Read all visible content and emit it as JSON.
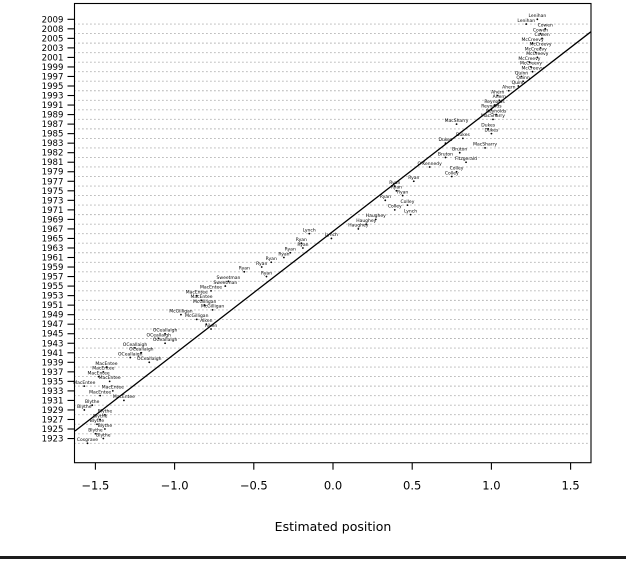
{
  "colors": {
    "foreground": "#000000",
    "grid_dots": "#6e6e6e",
    "background": "#ffffff",
    "window_edge": "#1c1c1c"
  },
  "chart_data": {
    "type": "scatter",
    "title": "",
    "xlabel": "Estimated position",
    "ylabel": "",
    "xlim": [
      -1.63,
      1.63
    ],
    "x_ticks": [
      -1.5,
      -1.0,
      -0.5,
      0.0,
      0.5,
      1.0,
      1.5
    ],
    "x_tick_labels": [
      "−1.5",
      "−1.0",
      "−0.5",
      "0.0",
      "0.5",
      "1.0",
      "1.5"
    ],
    "grid": "dotted horizontal guide lines",
    "legend": "none",
    "y_axis_note": "budget speeches ordered chronologically, 1923 at bottom to 2009 at top; labels thinned",
    "y_tick_labels": [
      "2009",
      "2008",
      "2005",
      "2003",
      "2001",
      "1999",
      "1997",
      "1995",
      "1993",
      "1991",
      "1989",
      "1987",
      "1985",
      "1983",
      "1982",
      "1981",
      "1979",
      "1977",
      "1975",
      "1973",
      "1971",
      "1969",
      "1967",
      "1965",
      "1963",
      "1961",
      "1959",
      "1957",
      "1955",
      "1953",
      "1951",
      "1949",
      "1947",
      "1945",
      "1943",
      "1941",
      "1939",
      "1937",
      "1935",
      "1933",
      "1931",
      "1929",
      "1927",
      "1925",
      "1923"
    ],
    "fit_line": {
      "x_at_top_doc": 1.73,
      "x_at_bottom_doc": -1.73
    },
    "points": [
      {
        "year": 2009,
        "label": "Lenihan",
        "x": 1.29
      },
      {
        "year": 2008,
        "label": "Lenihan",
        "x": 1.22
      },
      {
        "year": 2007,
        "label": "Cowen",
        "x": 1.34
      },
      {
        "year": 2006,
        "label": "Cowen",
        "x": 1.31
      },
      {
        "year": 2005,
        "label": "Cowen",
        "x": 1.32
      },
      {
        "year": 2004,
        "label": "McCreevy",
        "x": 1.26
      },
      {
        "year": 2003,
        "label": "McCreevy",
        "x": 1.31
      },
      {
        "year": 2002,
        "label": "McCreevy",
        "x": 1.28
      },
      {
        "year": 2001,
        "label": "McCreevy",
        "x": 1.29
      },
      {
        "year": 2000,
        "label": "McCreevy",
        "x": 1.24
      },
      {
        "year": 1999,
        "label": "McCreevy",
        "x": 1.25
      },
      {
        "year": 1998,
        "label": "McCreevy",
        "x": 1.26
      },
      {
        "year": 1997,
        "label": "Quinn",
        "x": 1.19
      },
      {
        "year": 1996,
        "label": "Quinn",
        "x": 1.2
      },
      {
        "year": 1995,
        "label": "Quinn",
        "x": 1.17
      },
      {
        "year": 1994,
        "label": "Ahern",
        "x": 1.11
      },
      {
        "year": 1993,
        "label": "Ahern",
        "x": 1.04
      },
      {
        "year": 1992,
        "label": "Ahern",
        "x": 1.05
      },
      {
        "year": 1991,
        "label": "Reynolds",
        "x": 1.02
      },
      {
        "year": 1990,
        "label": "Reynolds",
        "x": 1.0
      },
      {
        "year": 1989,
        "label": "Reynolds",
        "x": 1.03
      },
      {
        "year": 1988,
        "label": "MacSharry",
        "x": 1.01
      },
      {
        "year": 1987,
        "label": "MacSharry",
        "x": 0.78
      },
      {
        "year": 1986,
        "label": "Dukes",
        "x": 0.98
      },
      {
        "year": 1985,
        "label": "Dukes",
        "x": 1.0
      },
      {
        "year": 1984,
        "label": "Dukes",
        "x": 0.82
      },
      {
        "year": 1983,
        "label": "Dukes",
        "x": 0.71
      },
      {
        "year": 1982,
        "label": "MacSharry",
        "x": 0.96
      },
      {
        "year": 1982,
        "label": "Bruton",
        "x": 0.8
      },
      {
        "year": 1981,
        "label": "Bruton",
        "x": 0.71
      },
      {
        "year": 1981,
        "label": "Fitzgerald",
        "x": 0.84
      },
      {
        "year": 1980,
        "label": "O'Kennedy",
        "x": 0.61
      },
      {
        "year": 1979,
        "label": "Colley",
        "x": 0.78
      },
      {
        "year": 1978,
        "label": "Colley",
        "x": 0.75
      },
      {
        "year": 1977,
        "label": "Ryan",
        "x": 0.51
      },
      {
        "year": 1976,
        "label": "Ryan",
        "x": 0.39
      },
      {
        "year": 1975,
        "label": "Ryan",
        "x": 0.4
      },
      {
        "year": 1974,
        "label": "Ryan",
        "x": 0.44
      },
      {
        "year": 1973,
        "label": "Ryan",
        "x": 0.33
      },
      {
        "year": 1972,
        "label": "Colley",
        "x": 0.47
      },
      {
        "year": 1971,
        "label": "Colley",
        "x": 0.39
      },
      {
        "year": 1970,
        "label": "Lynch",
        "x": 0.49
      },
      {
        "year": 1969,
        "label": "Haughey",
        "x": 0.27
      },
      {
        "year": 1968,
        "label": "Haughey",
        "x": 0.21
      },
      {
        "year": 1967,
        "label": "Haughey",
        "x": 0.16
      },
      {
        "year": 1966,
        "label": "Lynch",
        "x": -0.15
      },
      {
        "year": 1965,
        "label": "Lynch",
        "x": -0.01
      },
      {
        "year": 1964,
        "label": "Ryan",
        "x": -0.2
      },
      {
        "year": 1963,
        "label": "Ryan",
        "x": -0.19
      },
      {
        "year": 1962,
        "label": "Ryan",
        "x": -0.27
      },
      {
        "year": 1961,
        "label": "Ryan",
        "x": -0.31
      },
      {
        "year": 1960,
        "label": "Ryan",
        "x": -0.39
      },
      {
        "year": 1959,
        "label": "Ryan",
        "x": -0.45
      },
      {
        "year": 1958,
        "label": "Ryan",
        "x": -0.56
      },
      {
        "year": 1957,
        "label": "Ryan",
        "x": -0.42
      },
      {
        "year": 1956,
        "label": "Sweetman",
        "x": -0.66
      },
      {
        "year": 1955,
        "label": "Sweetman",
        "x": -0.68
      },
      {
        "year": 1954,
        "label": "MacEntee",
        "x": -0.77
      },
      {
        "year": 1953,
        "label": "MacEntee",
        "x": -0.86
      },
      {
        "year": 1952,
        "label": "MacEntee",
        "x": -0.83
      },
      {
        "year": 1951,
        "label": "McGilligan",
        "x": -0.81
      },
      {
        "year": 1950,
        "label": "McGilligan",
        "x": -0.76
      },
      {
        "year": 1949,
        "label": "McGilligan",
        "x": -0.96
      },
      {
        "year": 1948,
        "label": "McGilligan",
        "x": -0.86
      },
      {
        "year": 1947,
        "label": "Aiken",
        "x": -0.8
      },
      {
        "year": 1946,
        "label": "Aiken",
        "x": -0.77
      },
      {
        "year": 1945,
        "label": "OCeallaigh",
        "x": -1.06
      },
      {
        "year": 1944,
        "label": "OCeallaigh",
        "x": -1.1
      },
      {
        "year": 1943,
        "label": "OCeallaigh",
        "x": -1.06
      },
      {
        "year": 1942,
        "label": "OCeallaigh",
        "x": -1.25
      },
      {
        "year": 1941,
        "label": "OCeallaigh",
        "x": -1.21
      },
      {
        "year": 1940,
        "label": "OCeallaigh",
        "x": -1.28
      },
      {
        "year": 1939,
        "label": "OCeallaigh",
        "x": -1.16
      },
      {
        "year": 1939,
        "label": "MacEntee",
        "x": -1.43
      },
      {
        "year": 1938,
        "label": "MacEntee",
        "x": -1.45
      },
      {
        "year": 1937,
        "label": "MacEntee",
        "x": -1.48
      },
      {
        "year": 1936,
        "label": "MacEntee",
        "x": -1.41
      },
      {
        "year": 1935,
        "label": "MacEntee",
        "x": -1.57
      },
      {
        "year": 1934,
        "label": "MacEntee",
        "x": -1.39
      },
      {
        "year": 1933,
        "label": "MacEntee",
        "x": -1.47
      },
      {
        "year": 1932,
        "label": "MacEntee",
        "x": -1.32
      },
      {
        "year": 1931,
        "label": "Blythe",
        "x": -1.52
      },
      {
        "year": 1930,
        "label": "Blythe",
        "x": -1.57
      },
      {
        "year": 1929,
        "label": "Blythe",
        "x": -1.44
      },
      {
        "year": 1928,
        "label": "Blythe",
        "x": -1.47
      },
      {
        "year": 1927,
        "label": "Blythe",
        "x": -1.49
      },
      {
        "year": 1926,
        "label": "Blythe",
        "x": -1.44
      },
      {
        "year": 1925,
        "label": "Blythe",
        "x": -1.5
      },
      {
        "year": 1924,
        "label": "Blythe",
        "x": -1.45
      },
      {
        "year": 1923,
        "label": "Cosgrave",
        "x": -1.55
      }
    ]
  }
}
